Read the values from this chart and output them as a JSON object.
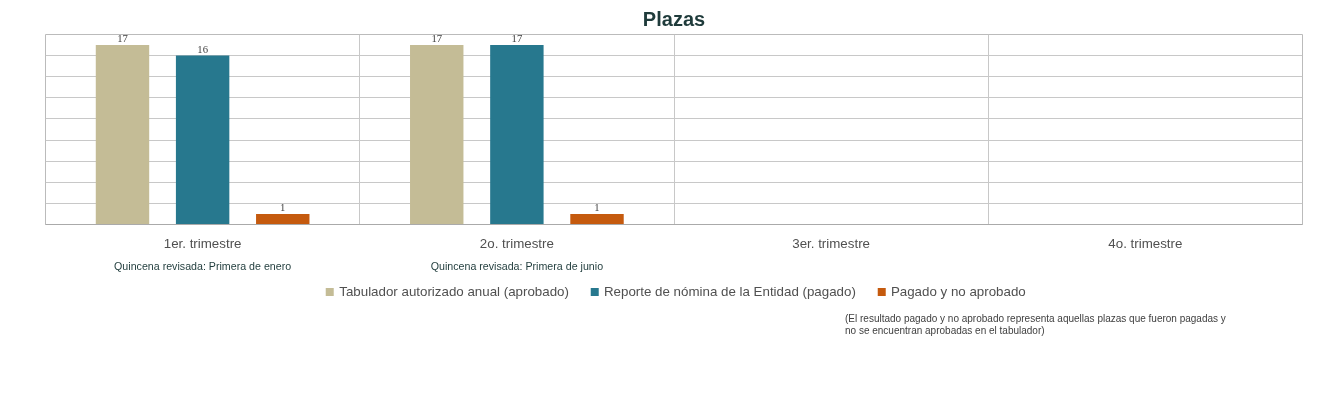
{
  "chart_data": {
    "type": "bar",
    "title": "Plazas",
    "categories": [
      "1er. trimestre",
      "2o. trimestre",
      "3er. trimestre",
      "4o. trimestre"
    ],
    "series": [
      {
        "name": "Tabulador autorizado anual (aprobado)",
        "color": "#c4bc96",
        "values": [
          17,
          17,
          null,
          null
        ]
      },
      {
        "name": "Reporte de nómina de la Entidad (pagado)",
        "color": "#27788e",
        "values": [
          16,
          17,
          null,
          null
        ]
      },
      {
        "name": "Pagado y no aprobado",
        "color": "#c55a0e",
        "values": [
          1,
          1,
          null,
          null
        ]
      }
    ],
    "ylim": [
      0,
      18
    ],
    "yticks": [
      {
        "value": 0,
        "label": null
      },
      {
        "value": 2,
        "label": null
      },
      {
        "value": 4,
        "label": null
      },
      {
        "value": 6,
        "label": null
      },
      {
        "value": 8,
        "label": null
      },
      {
        "value": 10,
        "label": null
      },
      {
        "value": 12,
        "label": null
      },
      {
        "value": 14,
        "label": null
      },
      {
        "value": 16,
        "label": null
      },
      {
        "value": 18,
        "label": null
      }
    ],
    "tick_labels": "x",
    "grid": true,
    "data_labels": true,
    "legend": "bottom",
    "annotations": [
      "Quincena revisada: Primera de enero",
      "Quincena revisada: Primera de junio",
      "(El resultado pagado y no aprobado representa aquellas plazas que fueron pagadas y no se encuentran aprobadas en el tabulador)"
    ]
  }
}
